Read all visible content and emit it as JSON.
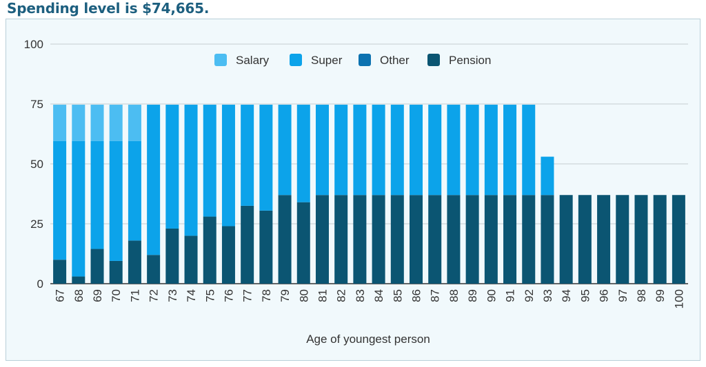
{
  "heading": "Spending level is $74,665.",
  "chart_data": {
    "type": "bar",
    "stacked": true,
    "xlabel": "Age of youngest person",
    "ylabel": "",
    "ylim": [
      0,
      100
    ],
    "yticks": [
      0,
      25,
      50,
      75,
      100
    ],
    "grid": true,
    "legend_position": "top",
    "categories": [
      "67",
      "68",
      "69",
      "70",
      "71",
      "72",
      "73",
      "74",
      "75",
      "76",
      "77",
      "78",
      "79",
      "80",
      "81",
      "82",
      "83",
      "84",
      "85",
      "86",
      "87",
      "88",
      "89",
      "90",
      "91",
      "92",
      "93",
      "94",
      "95",
      "96",
      "97",
      "98",
      "99",
      "100"
    ],
    "series": [
      {
        "name": "Pension",
        "color": "#0b5572",
        "values": [
          10,
          3,
          14.5,
          9.5,
          18,
          12,
          23,
          20,
          28,
          24,
          32.5,
          30.5,
          37,
          34,
          37,
          37,
          37,
          37,
          37,
          37,
          37,
          37,
          37,
          37,
          37,
          37,
          37,
          37,
          37,
          37,
          37,
          37,
          37,
          37
        ]
      },
      {
        "name": "Other",
        "color": "#0c72b0",
        "values": [
          0,
          0,
          0,
          0,
          0,
          0,
          0,
          0,
          0,
          0,
          0,
          0,
          0,
          0,
          0,
          0,
          0,
          0,
          0,
          0,
          0,
          0,
          0,
          0,
          0,
          0,
          0,
          0,
          0,
          0,
          0,
          0,
          0,
          0
        ]
      },
      {
        "name": "Super",
        "color": "#0ca3ea",
        "values": [
          49.5,
          56.5,
          45,
          50,
          41.5,
          62.7,
          51.7,
          54.7,
          46.7,
          50.7,
          42.2,
          44.2,
          37.7,
          40.7,
          37.7,
          37.7,
          37.7,
          37.7,
          37.7,
          37.7,
          37.7,
          37.7,
          37.7,
          37.7,
          37.7,
          37.7,
          16,
          0,
          0,
          0,
          0,
          0,
          0,
          0
        ]
      },
      {
        "name": "Salary",
        "color": "#4cbdf2",
        "values": [
          15.2,
          15.2,
          15.2,
          15.2,
          15.2,
          0,
          0,
          0,
          0,
          0,
          0,
          0,
          0,
          0,
          0,
          0,
          0,
          0,
          0,
          0,
          0,
          0,
          0,
          0,
          0,
          0,
          0,
          0,
          0,
          0,
          0,
          0,
          0,
          0
        ]
      }
    ],
    "legend_order": [
      "Salary",
      "Super",
      "Other",
      "Pension"
    ]
  }
}
